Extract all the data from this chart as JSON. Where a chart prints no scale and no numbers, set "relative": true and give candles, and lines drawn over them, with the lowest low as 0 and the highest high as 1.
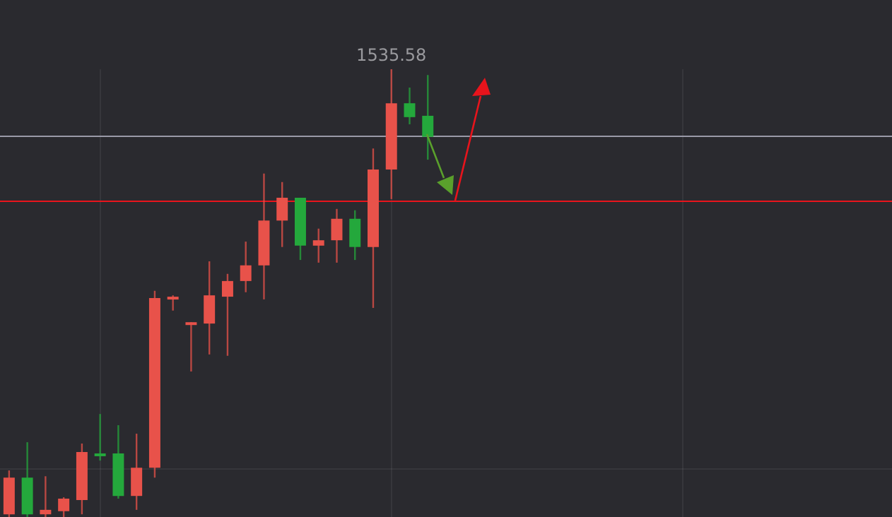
{
  "chart_data": {
    "type": "candlestick",
    "relative": true,
    "grid": true,
    "legend": false,
    "tick_labels": false,
    "annotations": [
      "1535.58"
    ],
    "categories": [
      null,
      null,
      null,
      null,
      null,
      null,
      null,
      null,
      null,
      null,
      null,
      null,
      null,
      null,
      null,
      null,
      null,
      null,
      null,
      null,
      null,
      null,
      null,
      null,
      null,
      null,
      null,
      null,
      null,
      null,
      null,
      null,
      null,
      null,
      null,
      null,
      null,
      null,
      null,
      null,
      null,
      null,
      null,
      null,
      null,
      null,
      null,
      null,
      null
    ],
    "ohlc": [
      [
        0.006,
        0.104,
        0,
        0.088
      ],
      [
        0.088,
        0.167,
        0,
        0.006
      ],
      [
        0.006,
        0.091,
        0,
        0.016
      ],
      [
        0.013,
        0.044,
        0,
        0.041
      ],
      [
        0.038,
        0.164,
        0.006,
        0.145
      ],
      [
        0.142,
        0.23,
        0.126,
        0.139
      ],
      [
        0.142,
        0.205,
        0.041,
        0.047
      ],
      [
        0.047,
        0.186,
        0.016,
        0.11
      ],
      [
        0.11,
        0.505,
        0.088,
        0.489
      ],
      [
        0.486,
        0.495,
        0.461,
        0.492
      ],
      [
        0.429,
        0.435,
        0.325,
        0.435
      ],
      [
        0.432,
        0.571,
        0.363,
        0.495
      ],
      [
        0.492,
        0.543,
        0.36,
        0.527
      ],
      [
        0.527,
        0.615,
        0.502,
        0.562
      ],
      [
        0.562,
        0.767,
        0.486,
        0.662
      ],
      [
        0.662,
        0.748,
        0.603,
        0.713
      ],
      [
        0.713,
        0.713,
        0.574,
        0.606
      ],
      [
        0.606,
        0.644,
        0.568,
        0.618
      ],
      [
        0.618,
        0.688,
        0.568,
        0.666
      ],
      [
        0.666,
        0.685,
        0.574,
        0.603
      ],
      [
        0.603,
        0.823,
        0.467,
        0.776
      ],
      [
        0.776,
        1,
        0.71,
        0.924
      ],
      [
        0.924,
        0.959,
        0.877,
        0.893
      ],
      [
        0.896,
        0.987,
        0.798,
        0.849
      ],
      null,
      null,
      null,
      null,
      null,
      null,
      null,
      null,
      null,
      null,
      null,
      null,
      null,
      null,
      null,
      null,
      null,
      null,
      null,
      null,
      null,
      null,
      null,
      null,
      null
    ],
    "colors": [
      "#e8524a",
      "#24a83c",
      "#e8524a",
      "#e8524a",
      "#e8524a",
      "#24a83c",
      "#24a83c",
      "#e8524a",
      "#e8524a",
      "#e8524a",
      "#e8524a",
      "#e8524a",
      "#e8524a",
      "#e8524a",
      "#e8524a",
      "#e8524a",
      "#24a83c",
      "#e8524a",
      "#e8524a",
      "#24a83c",
      "#e8524a",
      "#e8524a",
      "#24a83c",
      "#24a83c",
      null,
      null,
      null,
      null,
      null,
      null,
      null,
      null,
      null,
      null,
      null,
      null,
      null,
      null,
      null,
      null,
      null,
      null,
      null,
      null,
      null,
      null,
      null,
      null,
      null
    ],
    "ref_lines": [
      {
        "axis": "y",
        "value": 0.852,
        "color": "#9a9aa8"
      },
      {
        "axis": "y",
        "value": 0.707,
        "color": "#e8141c"
      }
    ]
  }
}
